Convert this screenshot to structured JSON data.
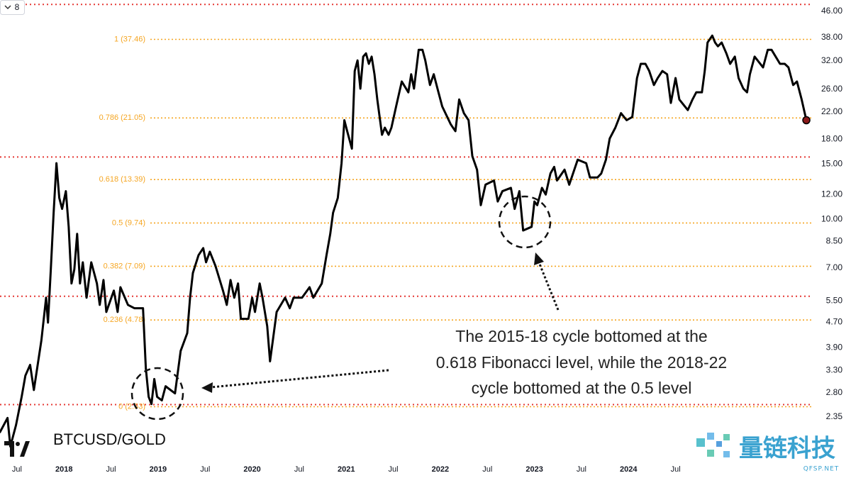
{
  "toolbar_label": "8",
  "watermark": {
    "title": "量链科技",
    "subtitle": "QFSP.NET"
  },
  "chart_data": {
    "type": "line",
    "symbol": "BTCUSD/GOLD",
    "annotation": [
      "The 2015-18 cycle bottomed at the",
      "0.618 Fibonacci level, while the 2018-22",
      "cycle bottomed at the 0.5 level"
    ],
    "log_y": true,
    "xlim": [
      2017.32,
      2025.95
    ],
    "ylim": [
      1.79,
      50
    ],
    "xticks": [
      {
        "value": 2017.5,
        "label": "Jul"
      },
      2018,
      {
        "value": 2018.5,
        "label": "Jul"
      },
      2019,
      {
        "value": 2019.5,
        "label": "Jul"
      },
      2020,
      {
        "value": 2020.5,
        "label": "Jul"
      },
      2021,
      {
        "value": 2021.5,
        "label": "Jul"
      },
      2022,
      {
        "value": 2022.5,
        "label": "Jul"
      },
      2023,
      {
        "value": 2023.5,
        "label": "Jul"
      },
      2024,
      {
        "value": 2024.5,
        "label": "Jul"
      }
    ],
    "yticks": [
      {
        "value": 46,
        "label": "46.00"
      },
      {
        "value": 38,
        "label": "38.00"
      },
      {
        "value": 32,
        "label": "32.00"
      },
      {
        "value": 26,
        "label": "26.00"
      },
      {
        "value": 22,
        "label": "22.00"
      },
      {
        "value": 18,
        "label": "18.00"
      },
      {
        "value": 15,
        "label": "15.00"
      },
      {
        "value": 12,
        "label": "12.00"
      },
      {
        "value": 10,
        "label": "10.00"
      },
      {
        "value": 8.5,
        "label": "8.50"
      },
      {
        "value": 7,
        "label": "7.00"
      },
      {
        "value": 5.5,
        "label": "5.50"
      },
      {
        "value": 4.7,
        "label": "4.70"
      },
      {
        "value": 3.9,
        "label": "3.90"
      },
      {
        "value": 3.3,
        "label": "3.30"
      },
      {
        "value": 2.8,
        "label": "2.80"
      },
      {
        "value": 2.35,
        "label": "2.35"
      }
    ],
    "fib_color": "#f5a623",
    "fib_levels": [
      {
        "label": "1 (37.46)",
        "value": 37.46
      },
      {
        "label": "0.786 (21.05)",
        "value": 21.05
      },
      {
        "label": "0.618 (13.39)",
        "value": 13.39
      },
      {
        "label": "0.5 (9.74)",
        "value": 9.74
      },
      {
        "label": "0.382 (7.09)",
        "value": 7.09
      },
      {
        "label": "0.236 (4.78)",
        "value": 4.78
      },
      {
        "label": "0 (2.53)",
        "value": 2.53
      }
    ],
    "red_color": "#e53935",
    "red_levels": [
      48.4,
      15.8,
      5.69,
      2.57
    ],
    "series": [
      {
        "color": "#000000",
        "last_marker_color": "#8b1a1a",
        "x": [
          2017.32,
          2017.4,
          2017.43,
          2017.49,
          2017.55,
          2017.59,
          2017.64,
          2017.68,
          2017.76,
          2017.81,
          2017.83,
          2017.86,
          2017.89,
          2017.92,
          2017.95,
          2017.98,
          2018.02,
          2018.05,
          2018.08,
          2018.11,
          2018.14,
          2018.17,
          2018.2,
          2018.24,
          2018.29,
          2018.35,
          2018.38,
          2018.42,
          2018.45,
          2018.53,
          2018.57,
          2018.6,
          2018.68,
          2018.75,
          2018.84,
          2018.87,
          2018.9,
          2018.93,
          2018.96,
          2018.99,
          2019.04,
          2019.08,
          2019.18,
          2019.24,
          2019.31,
          2019.34,
          2019.37,
          2019.43,
          2019.48,
          2019.51,
          2019.55,
          2019.61,
          2019.69,
          2019.73,
          2019.77,
          2019.81,
          2019.85,
          2019.88,
          2019.96,
          2020.0,
          2020.03,
          2020.08,
          2020.11,
          2020.16,
          2020.19,
          2020.22,
          2020.26,
          2020.35,
          2020.4,
          2020.44,
          2020.53,
          2020.61,
          2020.65,
          2020.74,
          2020.79,
          2020.83,
          2020.86,
          2020.91,
          2020.95,
          2020.98,
          2021.01,
          2021.06,
          2021.09,
          2021.12,
          2021.15,
          2021.18,
          2021.21,
          2021.24,
          2021.27,
          2021.3,
          2021.33,
          2021.38,
          2021.41,
          2021.45,
          2021.48,
          2021.53,
          2021.59,
          2021.66,
          2021.69,
          2021.72,
          2021.77,
          2021.81,
          2021.84,
          2021.89,
          2021.93,
          2021.98,
          2022.02,
          2022.11,
          2022.16,
          2022.2,
          2022.25,
          2022.3,
          2022.34,
          2022.39,
          2022.43,
          2022.48,
          2022.57,
          2022.61,
          2022.66,
          2022.75,
          2022.79,
          2022.84,
          2022.88,
          2022.97,
          2023.0,
          2023.03,
          2023.08,
          2023.12,
          2023.17,
          2023.21,
          2023.24,
          2023.32,
          2023.37,
          2023.46,
          2023.55,
          2023.59,
          2023.67,
          2023.71,
          2023.76,
          2023.8,
          2023.86,
          2023.92,
          2023.98,
          2024.04,
          2024.09,
          2024.13,
          2024.18,
          2024.22,
          2024.27,
          2024.31,
          2024.36,
          2024.41,
          2024.45,
          2024.5,
          2024.54,
          2024.63,
          2024.68,
          2024.72,
          2024.78,
          2024.81,
          2024.84,
          2024.89,
          2024.92,
          2024.95,
          2024.99,
          2025.04,
          2025.08,
          2025.13,
          2025.17,
          2025.22,
          2025.26,
          2025.29,
          2025.34,
          2025.43,
          2025.48,
          2025.52,
          2025.61,
          2025.66,
          2025.7,
          2025.75,
          2025.79,
          2025.84,
          2025.89
        ],
        "values": [
          2.1,
          2.33,
          1.89,
          2.21,
          2.72,
          3.18,
          3.44,
          2.86,
          4.12,
          5.63,
          4.69,
          6.93,
          10.5,
          15.1,
          11.7,
          10.8,
          12.3,
          9.47,
          6.25,
          6.93,
          8.99,
          6.25,
          7.3,
          5.63,
          7.3,
          6.25,
          5.34,
          6.41,
          5.07,
          5.93,
          5.07,
          6.08,
          5.34,
          5.21,
          5.21,
          3.35,
          2.72,
          2.58,
          3.1,
          2.72,
          2.65,
          2.94,
          2.79,
          3.81,
          4.34,
          5.63,
          6.75,
          7.69,
          8.1,
          7.3,
          7.89,
          7.11,
          5.93,
          5.34,
          6.41,
          5.63,
          6.25,
          4.82,
          4.82,
          5.63,
          5.07,
          6.25,
          5.63,
          4.57,
          3.53,
          4.12,
          5.07,
          5.63,
          5.21,
          5.63,
          5.63,
          6.08,
          5.63,
          6.25,
          7.69,
          8.99,
          10.5,
          11.7,
          15.1,
          20.7,
          19.1,
          16.8,
          29.7,
          32.1,
          26.1,
          33.0,
          33.8,
          31.3,
          33.0,
          29.0,
          24.1,
          18.6,
          19.6,
          18.6,
          19.6,
          22.9,
          27.5,
          25.4,
          29.0,
          26.1,
          34.7,
          34.7,
          32.1,
          26.8,
          29.0,
          25.4,
          22.9,
          20.1,
          19.1,
          24.1,
          21.8,
          20.7,
          15.9,
          14.4,
          11.1,
          12.9,
          13.3,
          11.4,
          12.3,
          12.6,
          10.8,
          12.3,
          9.22,
          9.47,
          11.4,
          11.1,
          12.6,
          12.0,
          14.0,
          14.7,
          13.3,
          14.4,
          12.9,
          15.5,
          15.1,
          13.6,
          13.6,
          14.0,
          15.5,
          18.1,
          19.6,
          21.8,
          20.7,
          21.2,
          28.2,
          31.3,
          31.3,
          29.7,
          26.8,
          28.2,
          29.7,
          29.0,
          23.5,
          28.2,
          24.1,
          22.3,
          24.1,
          25.4,
          25.4,
          29.7,
          36.6,
          38.5,
          36.6,
          35.6,
          36.6,
          33.8,
          31.3,
          33.0,
          28.2,
          26.1,
          25.4,
          29.0,
          33.0,
          30.5,
          34.7,
          34.7,
          31.3,
          31.3,
          30.5,
          26.8,
          27.5,
          24.1,
          20.7
        ]
      }
    ]
  }
}
